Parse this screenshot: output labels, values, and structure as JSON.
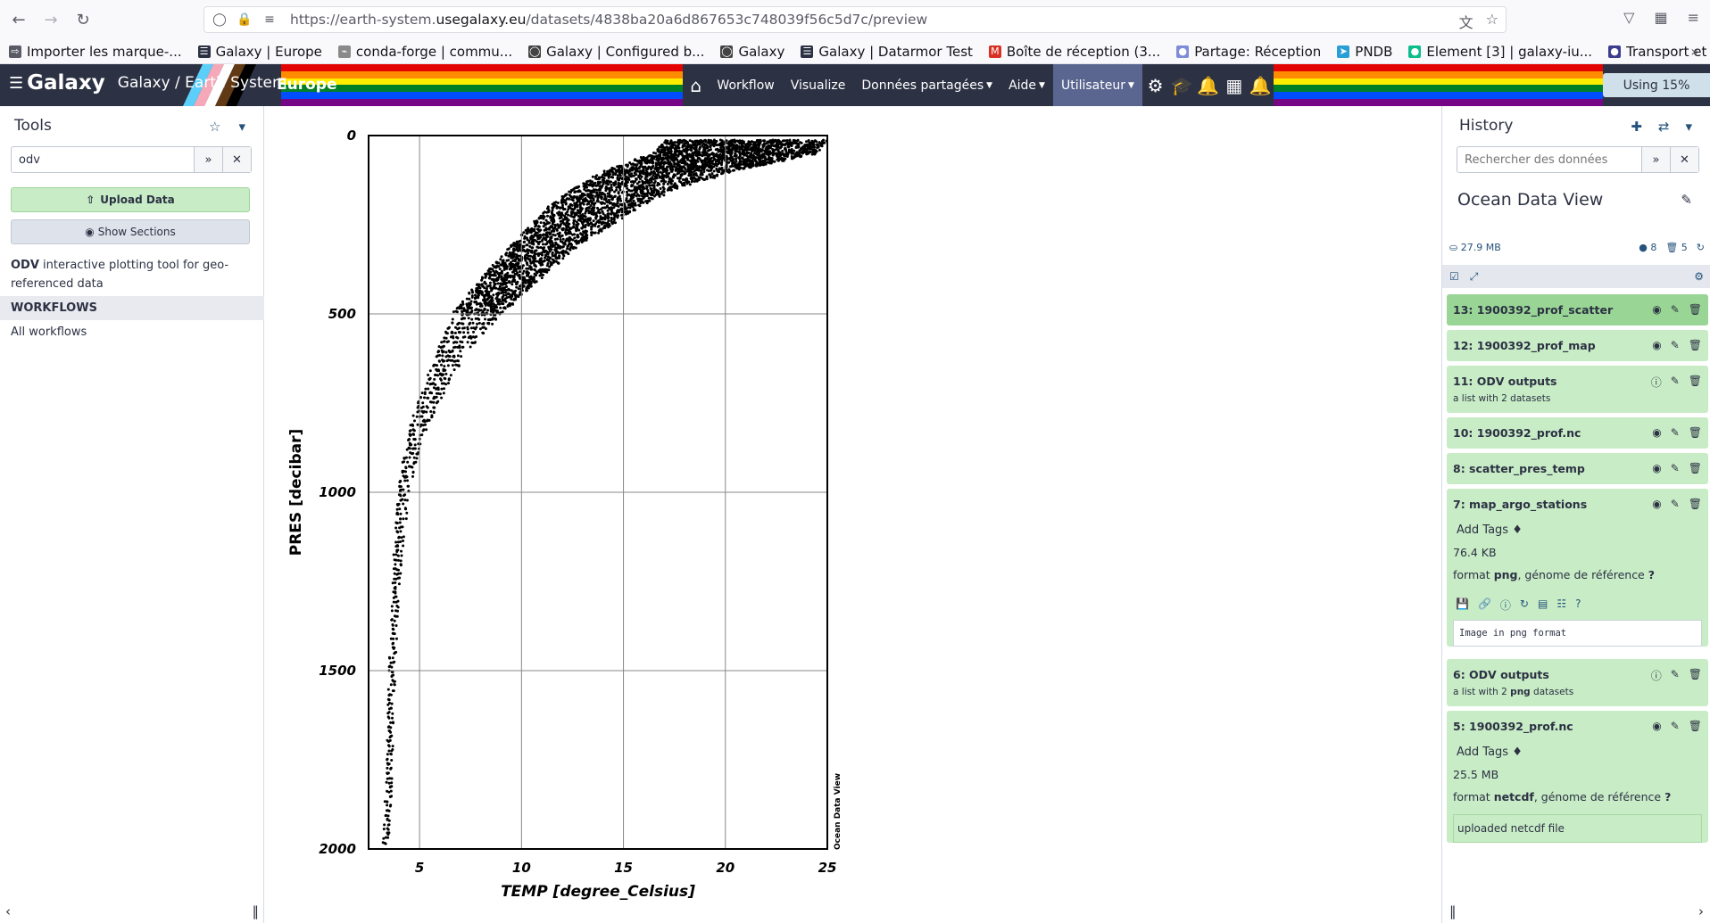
{
  "browser": {
    "url_prefix": "https://earth-system.",
    "url_domain": "usegalaxy.eu",
    "url_path": "/datasets/4838ba20a6d867653c748039f56c5d7c/preview",
    "bookmarks": [
      {
        "label": "Importer les marque-..."
      },
      {
        "label": "Galaxy | Europe"
      },
      {
        "label": "conda-forge | commu..."
      },
      {
        "label": "Galaxy | Configured b..."
      },
      {
        "label": "Galaxy"
      },
      {
        "label": "Galaxy | Datarmor Test"
      },
      {
        "label": "Boîte de réception (3..."
      },
      {
        "label": "Partage: Réception"
      },
      {
        "label": "PNDB"
      },
      {
        "label": "Element [3] | galaxy-iu..."
      },
      {
        "label": "Transport et héberge..."
      }
    ]
  },
  "masthead": {
    "logo": "Galaxy",
    "title": "Galaxy / Earth System",
    "region": "Europe",
    "nav": {
      "workflow": "Workflow",
      "visualize": "Visualize",
      "shared": "Données partagées",
      "help": "Aide",
      "user": "Utilisateur"
    },
    "quota": "Using 15%"
  },
  "tools": {
    "title": "Tools",
    "search_value": "odv",
    "upload_label": "Upload Data",
    "sections_label": "Show Sections",
    "tool_name": "ODV",
    "tool_desc": " interactive plotting tool for geo-referenced data",
    "workflows_header": "WORKFLOWS",
    "all_workflows": "All workflows"
  },
  "chart_data": {
    "type": "scatter",
    "xlabel": "TEMP [degree_Celsius]",
    "ylabel": "PRES [decibar]",
    "watermark": "Ocean Data View",
    "xlim": [
      2.5,
      25
    ],
    "ylim": [
      0,
      2000
    ],
    "y_inverted": true,
    "grid": true,
    "x_ticks": [
      "5",
      "10",
      "15",
      "20",
      "25"
    ],
    "y_ticks": [
      "0",
      "500",
      "1000",
      "1500",
      "2000"
    ],
    "profile_envelope": [
      {
        "pres": 15,
        "temp_min": 17.0,
        "temp_max": 25.0
      },
      {
        "pres": 50,
        "temp_min": 16.5,
        "temp_max": 24.5
      },
      {
        "pres": 100,
        "temp_min": 14.0,
        "temp_max": 20.5
      },
      {
        "pres": 150,
        "temp_min": 12.5,
        "temp_max": 17.5
      },
      {
        "pres": 200,
        "temp_min": 11.3,
        "temp_max": 15.8
      },
      {
        "pres": 250,
        "temp_min": 10.5,
        "temp_max": 14.5
      },
      {
        "pres": 300,
        "temp_min": 9.6,
        "temp_max": 13.0
      },
      {
        "pres": 350,
        "temp_min": 8.8,
        "temp_max": 12.0
      },
      {
        "pres": 400,
        "temp_min": 8.0,
        "temp_max": 11.0
      },
      {
        "pres": 450,
        "temp_min": 7.3,
        "temp_max": 10.0
      },
      {
        "pres": 500,
        "temp_min": 6.6,
        "temp_max": 9.0
      },
      {
        "pres": 600,
        "temp_min": 5.9,
        "temp_max": 7.4
      },
      {
        "pres": 700,
        "temp_min": 5.2,
        "temp_max": 6.4
      },
      {
        "pres": 800,
        "temp_min": 4.6,
        "temp_max": 5.5
      },
      {
        "pres": 900,
        "temp_min": 4.2,
        "temp_max": 4.9
      },
      {
        "pres": 1000,
        "temp_min": 3.95,
        "temp_max": 4.5
      },
      {
        "pres": 1200,
        "temp_min": 3.7,
        "temp_max": 4.1
      },
      {
        "pres": 1400,
        "temp_min": 3.55,
        "temp_max": 3.9
      },
      {
        "pres": 1600,
        "temp_min": 3.45,
        "temp_max": 3.75
      },
      {
        "pres": 1800,
        "temp_min": 3.35,
        "temp_max": 3.65
      },
      {
        "pres": 1990,
        "temp_min": 3.2,
        "temp_max": 3.55
      }
    ]
  },
  "history": {
    "title": "History",
    "search_placeholder": "Rechercher des données",
    "name": "Ocean Data View",
    "size": "27.9 MB",
    "shown_count": "8",
    "deleted_count": "5",
    "items": [
      {
        "title": "13: 1900392_prof_scatter"
      },
      {
        "title": "12: 1900392_prof_map"
      },
      {
        "title": "11: ODV outputs",
        "sub": "a list with 2 datasets"
      },
      {
        "title": "10: 1900392_prof.nc"
      },
      {
        "title": "8: scatter_pres_temp"
      },
      {
        "title": "7: map_argo_stations",
        "tags": "Add Tags",
        "size": "76.4 KB",
        "fmt_label": "format ",
        "fmt": "png",
        "genome": ",  génome de référence ",
        "genome_q": "?",
        "peek": "Image in png format"
      },
      {
        "title": "6: ODV outputs",
        "sub_a": "a list with 2 ",
        "sub_b": "png",
        "sub_c": " datasets"
      },
      {
        "title": "5: 1900392_prof.nc",
        "tags": "Add Tags",
        "size": "25.5 MB",
        "fmt_label": "format ",
        "fmt": "netcdf",
        "genome": ",  génome de référence ",
        "genome_q": "?",
        "info": "uploaded netcdf file"
      }
    ]
  }
}
